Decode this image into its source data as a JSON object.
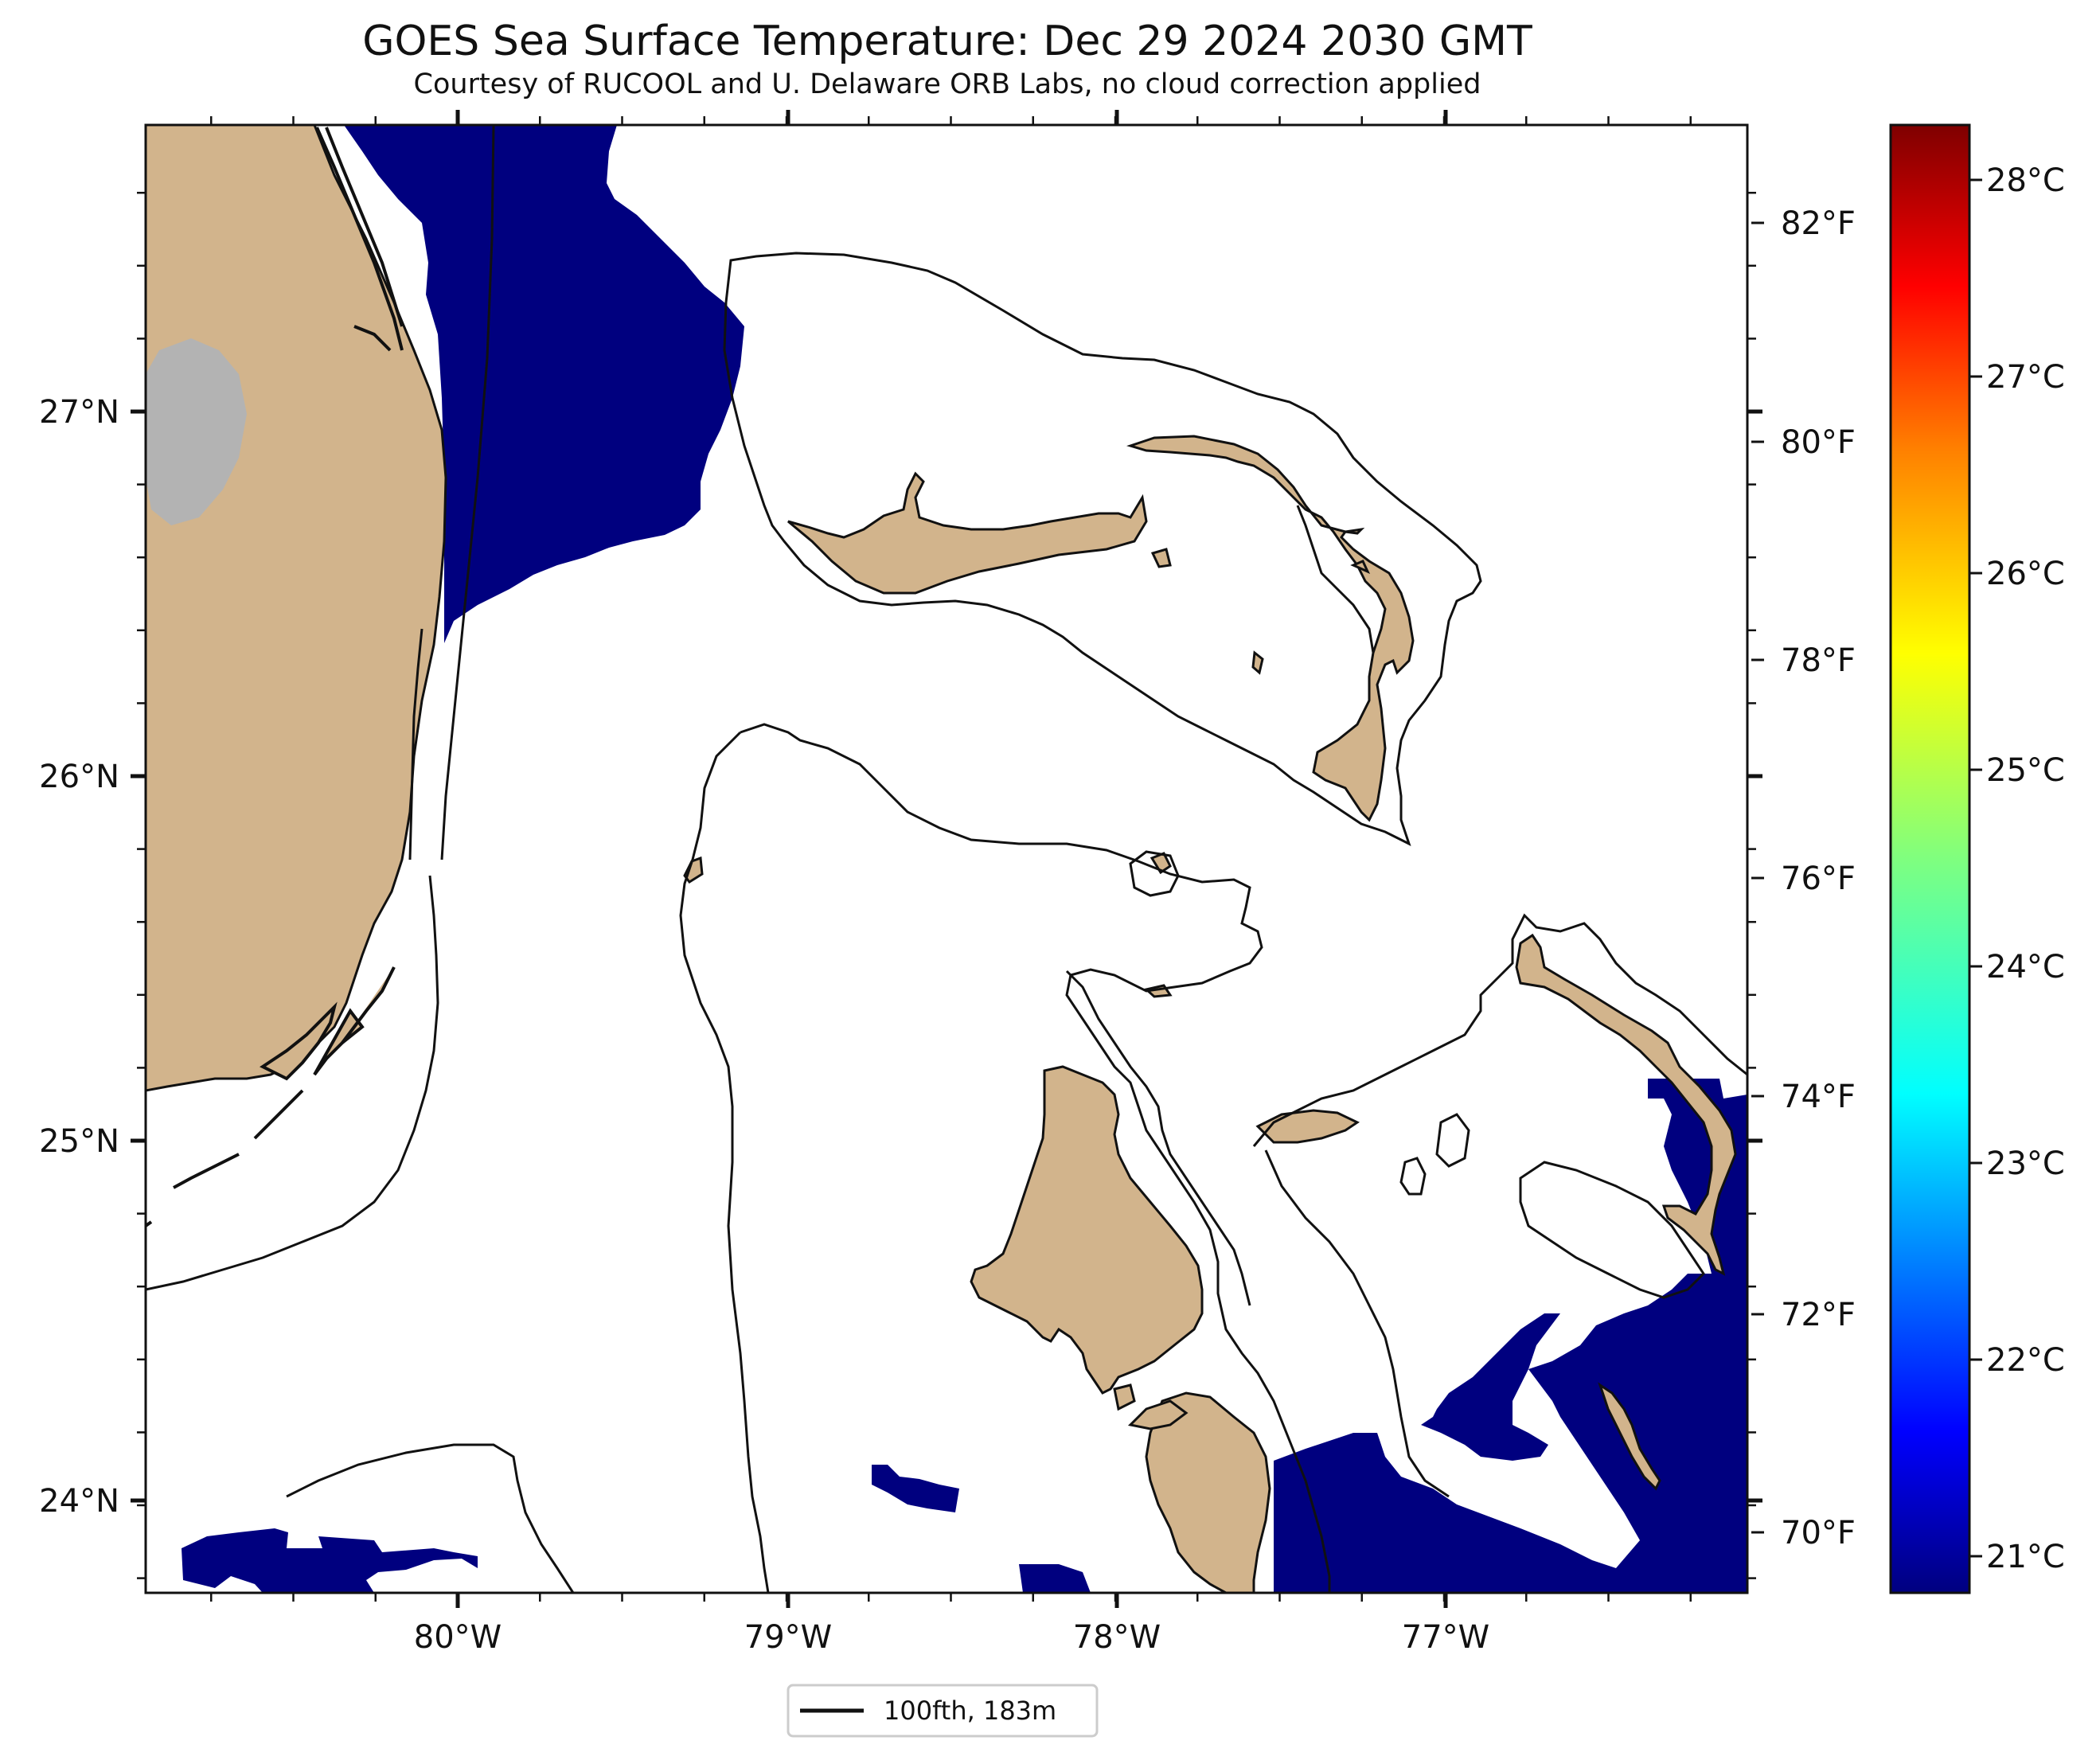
{
  "title": "GOES Sea Surface Temperature: Dec 29 2024 2030 GMT",
  "subtitle": "Courtesy of RUCOOL and U. Delaware ORB Labs, no cloud correction applied",
  "map": {
    "lon_ticks": [
      "80°W",
      "79°W",
      "78°W",
      "77°W"
    ],
    "lat_ticks": [
      "27°N",
      "26°N",
      "25°N",
      "24°N"
    ],
    "land_color": "#d2b48c",
    "cold_sst_color": "#00007f",
    "lake_color": "#b3b3b3"
  },
  "colorbar": {
    "celsius_labels": [
      "28°C",
      "27°C",
      "26°C",
      "25°C",
      "24°C",
      "23°C",
      "22°C",
      "21°C"
    ],
    "fahrenheit_labels": [
      "82°F",
      "80°F",
      "78°F",
      "76°F",
      "74°F",
      "72°F",
      "70°F"
    ],
    "colormap": "jet",
    "colors": [
      "#00007f",
      "#0000ff",
      "#007fff",
      "#00ffff",
      "#7fff7f",
      "#ffff00",
      "#ff7f00",
      "#ff0000",
      "#7f0000"
    ]
  },
  "legend": {
    "label": "100fth, 183m"
  }
}
